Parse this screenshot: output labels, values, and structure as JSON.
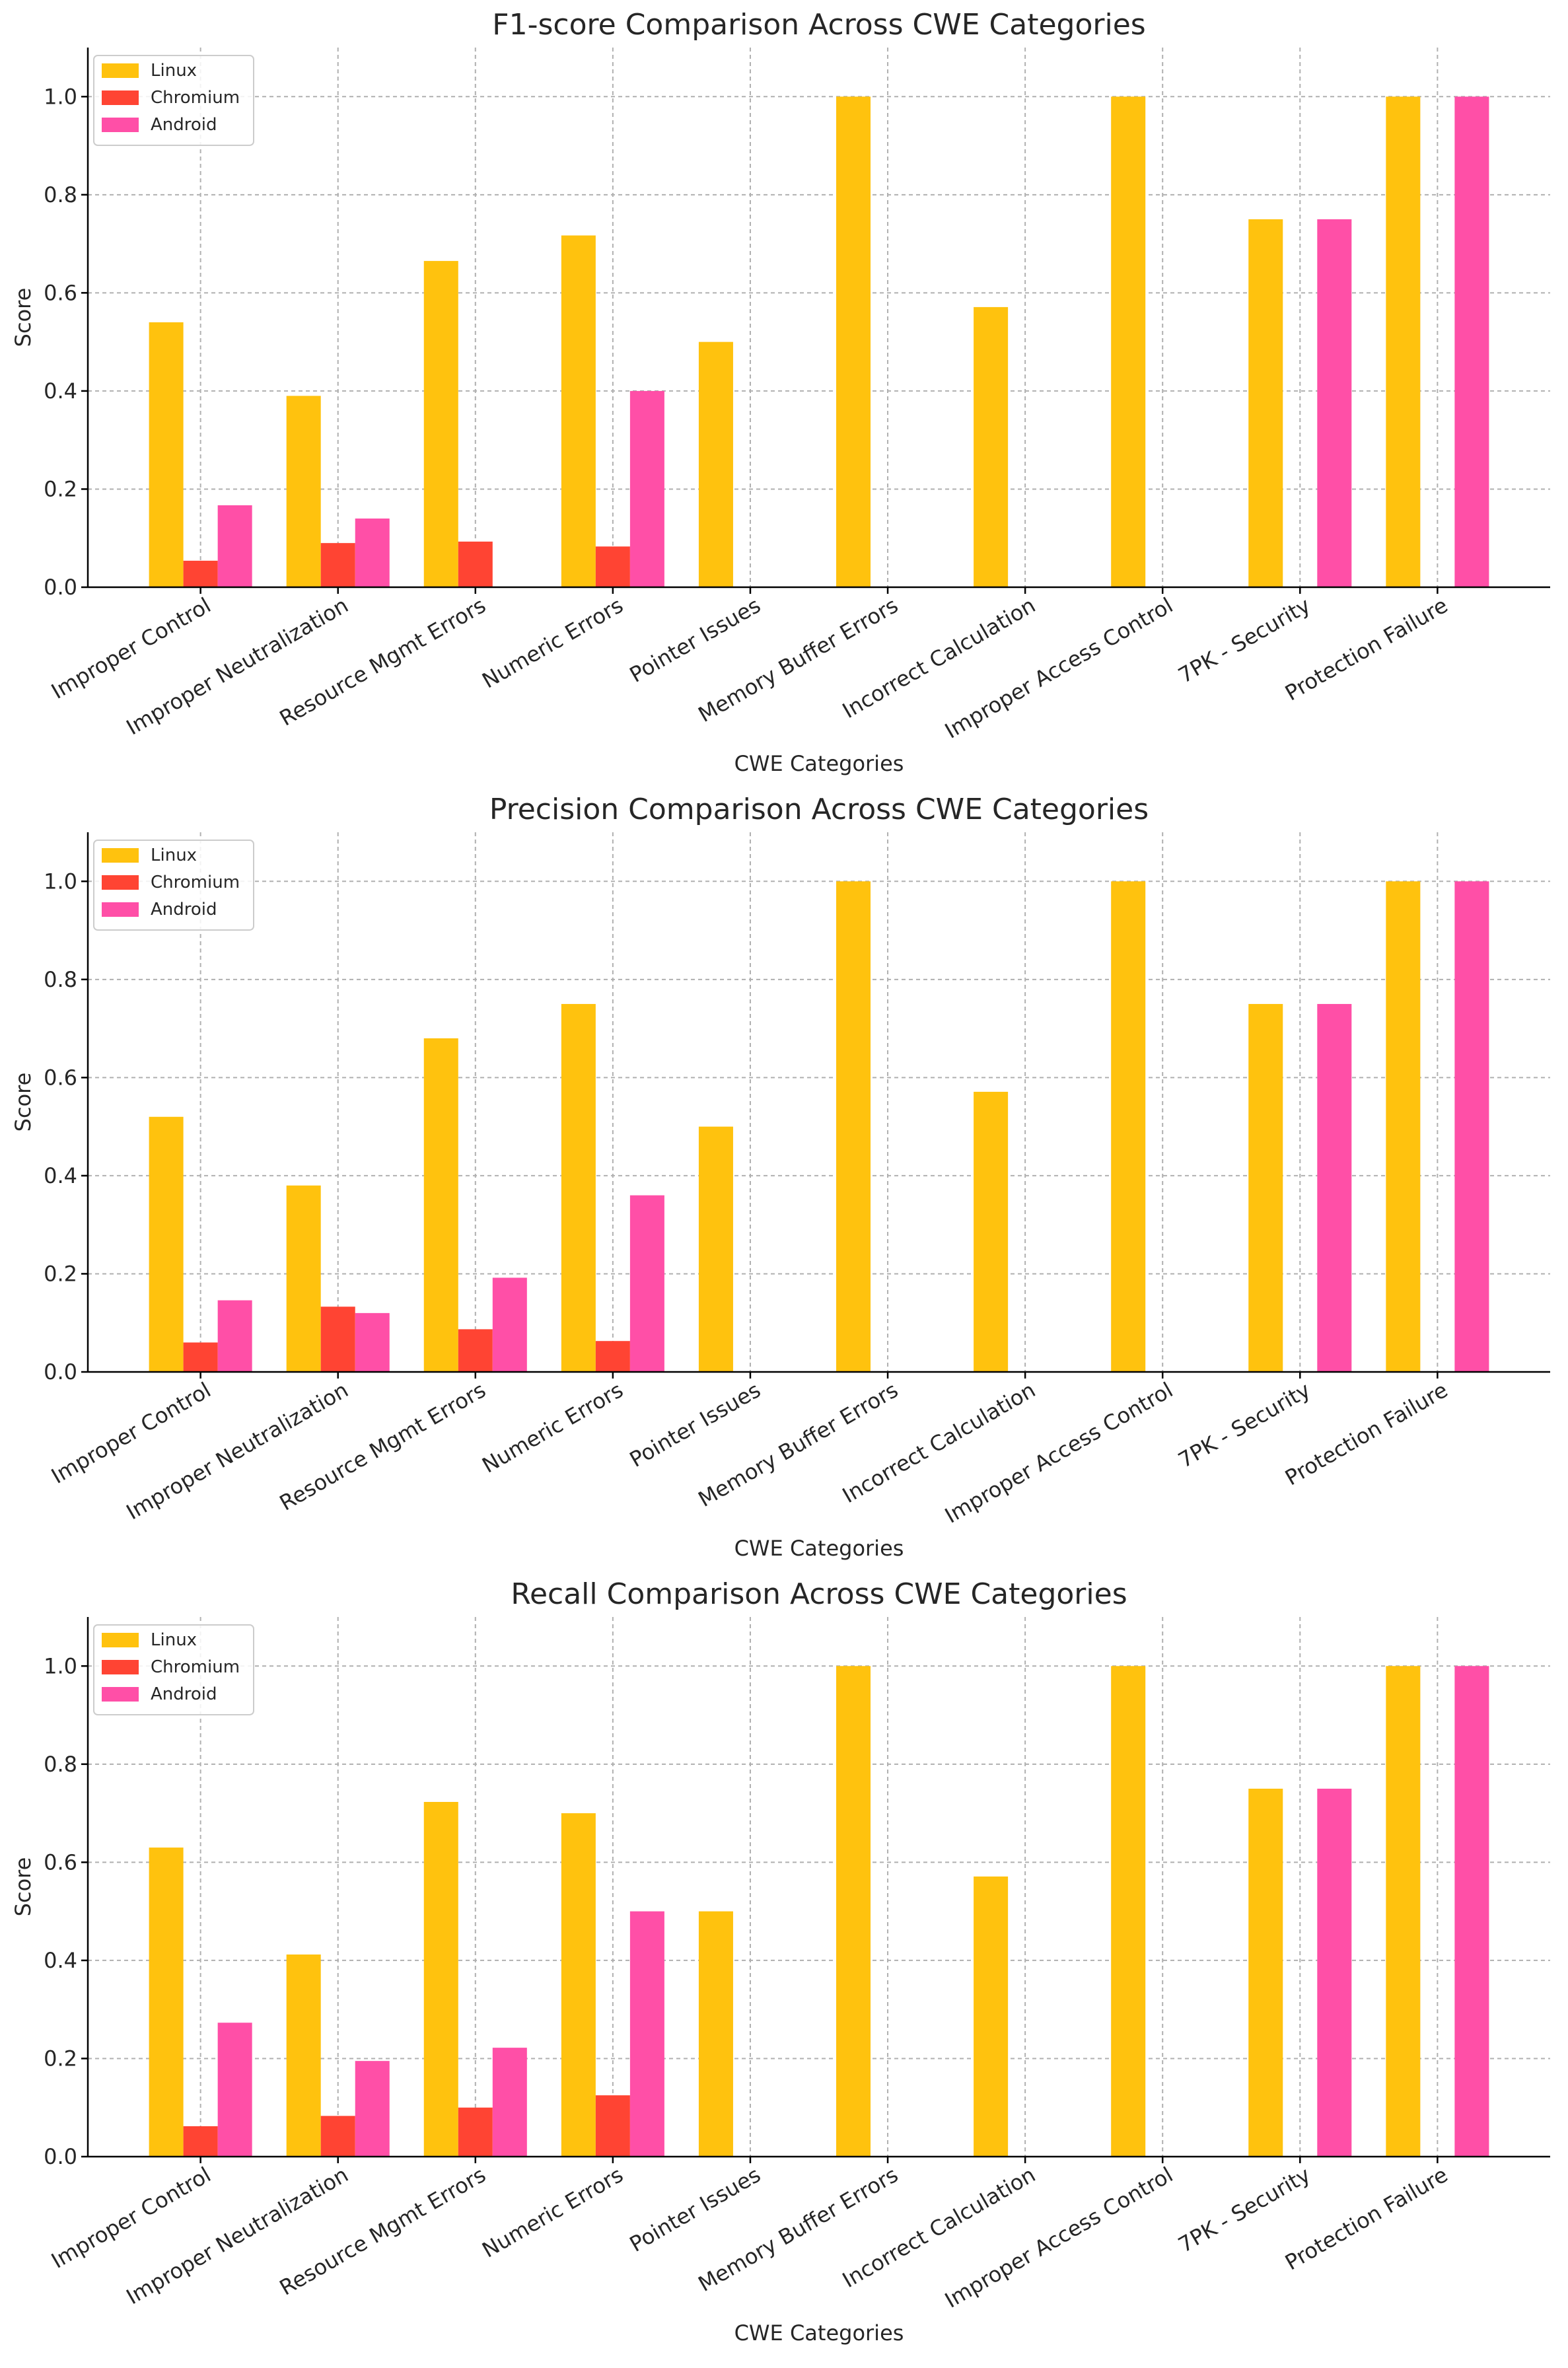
{
  "chart_data": [
    {
      "type": "bar",
      "title": "F1-score Comparison Across CWE Categories",
      "xlabel": "CWE Categories",
      "ylabel": "Score",
      "ylim": [
        0,
        1.1
      ],
      "yticks": [
        "0.0",
        "0.2",
        "0.4",
        "0.6",
        "0.8",
        "1.0"
      ],
      "grid": true,
      "legend": "top-left",
      "categories": [
        "Improper Control",
        "Improper Neutralization",
        "Resource Mgmt Errors",
        "Numeric Errors",
        "Pointer Issues",
        "Memory Buffer Errors",
        "Incorrect Calculation",
        "Improper Access Control",
        "7PK - Security",
        "Protection Failure"
      ],
      "series": [
        {
          "name": "Linux",
          "color": "#FFC20E",
          "values": [
            0.54,
            0.39,
            0.665,
            0.717,
            0.5,
            1.0,
            0.571,
            1.0,
            0.75,
            1.0
          ]
        },
        {
          "name": "Chromium",
          "color": "#FF4433",
          "values": [
            0.054,
            0.09,
            0.093,
            0.083,
            0,
            0,
            0,
            0,
            0,
            0
          ]
        },
        {
          "name": "Android",
          "color": "#FF4FA7",
          "values": [
            0.167,
            0.14,
            0,
            0.4,
            0,
            0,
            0,
            0,
            0.75,
            1.0
          ]
        }
      ]
    },
    {
      "type": "bar",
      "title": "Precision Comparison Across CWE Categories",
      "xlabel": "CWE Categories",
      "ylabel": "Score",
      "ylim": [
        0,
        1.1
      ],
      "yticks": [
        "0.0",
        "0.2",
        "0.4",
        "0.6",
        "0.8",
        "1.0"
      ],
      "grid": true,
      "legend": "top-left",
      "categories": [
        "Improper Control",
        "Improper Neutralization",
        "Resource Mgmt Errors",
        "Numeric Errors",
        "Pointer Issues",
        "Memory Buffer Errors",
        "Incorrect Calculation",
        "Improper Access Control",
        "7PK - Security",
        "Protection Failure"
      ],
      "series": [
        {
          "name": "Linux",
          "color": "#FFC20E",
          "values": [
            0.52,
            0.38,
            0.68,
            0.75,
            0.5,
            1.0,
            0.571,
            1.0,
            0.75,
            1.0
          ]
        },
        {
          "name": "Chromium",
          "color": "#FF4433",
          "values": [
            0.06,
            0.133,
            0.087,
            0.063,
            0,
            0,
            0,
            0,
            0,
            0
          ]
        },
        {
          "name": "Android",
          "color": "#FF4FA7",
          "values": [
            0.146,
            0.12,
            0.192,
            0.36,
            0,
            0,
            0,
            0,
            0.75,
            1.0
          ]
        }
      ]
    },
    {
      "type": "bar",
      "title": "Recall Comparison Across CWE Categories",
      "xlabel": "CWE Categories",
      "ylabel": "Score",
      "ylim": [
        0,
        1.1
      ],
      "yticks": [
        "0.0",
        "0.2",
        "0.4",
        "0.6",
        "0.8",
        "1.0"
      ],
      "grid": true,
      "legend": "top-left",
      "categories": [
        "Improper Control",
        "Improper Neutralization",
        "Resource Mgmt Errors",
        "Numeric Errors",
        "Pointer Issues",
        "Memory Buffer Errors",
        "Incorrect Calculation",
        "Improper Access Control",
        "7PK - Security",
        "Protection Failure"
      ],
      "series": [
        {
          "name": "Linux",
          "color": "#FFC20E",
          "values": [
            0.63,
            0.412,
            0.723,
            0.7,
            0.5,
            1.0,
            0.571,
            1.0,
            0.75,
            1.0
          ]
        },
        {
          "name": "Chromium",
          "color": "#FF4433",
          "values": [
            0.062,
            0.083,
            0.1,
            0.125,
            0,
            0,
            0,
            0,
            0,
            0
          ]
        },
        {
          "name": "Android",
          "color": "#FF4FA7",
          "values": [
            0.273,
            0.195,
            0.222,
            0.5,
            0,
            0,
            0,
            0,
            0.75,
            1.0
          ]
        }
      ]
    }
  ]
}
